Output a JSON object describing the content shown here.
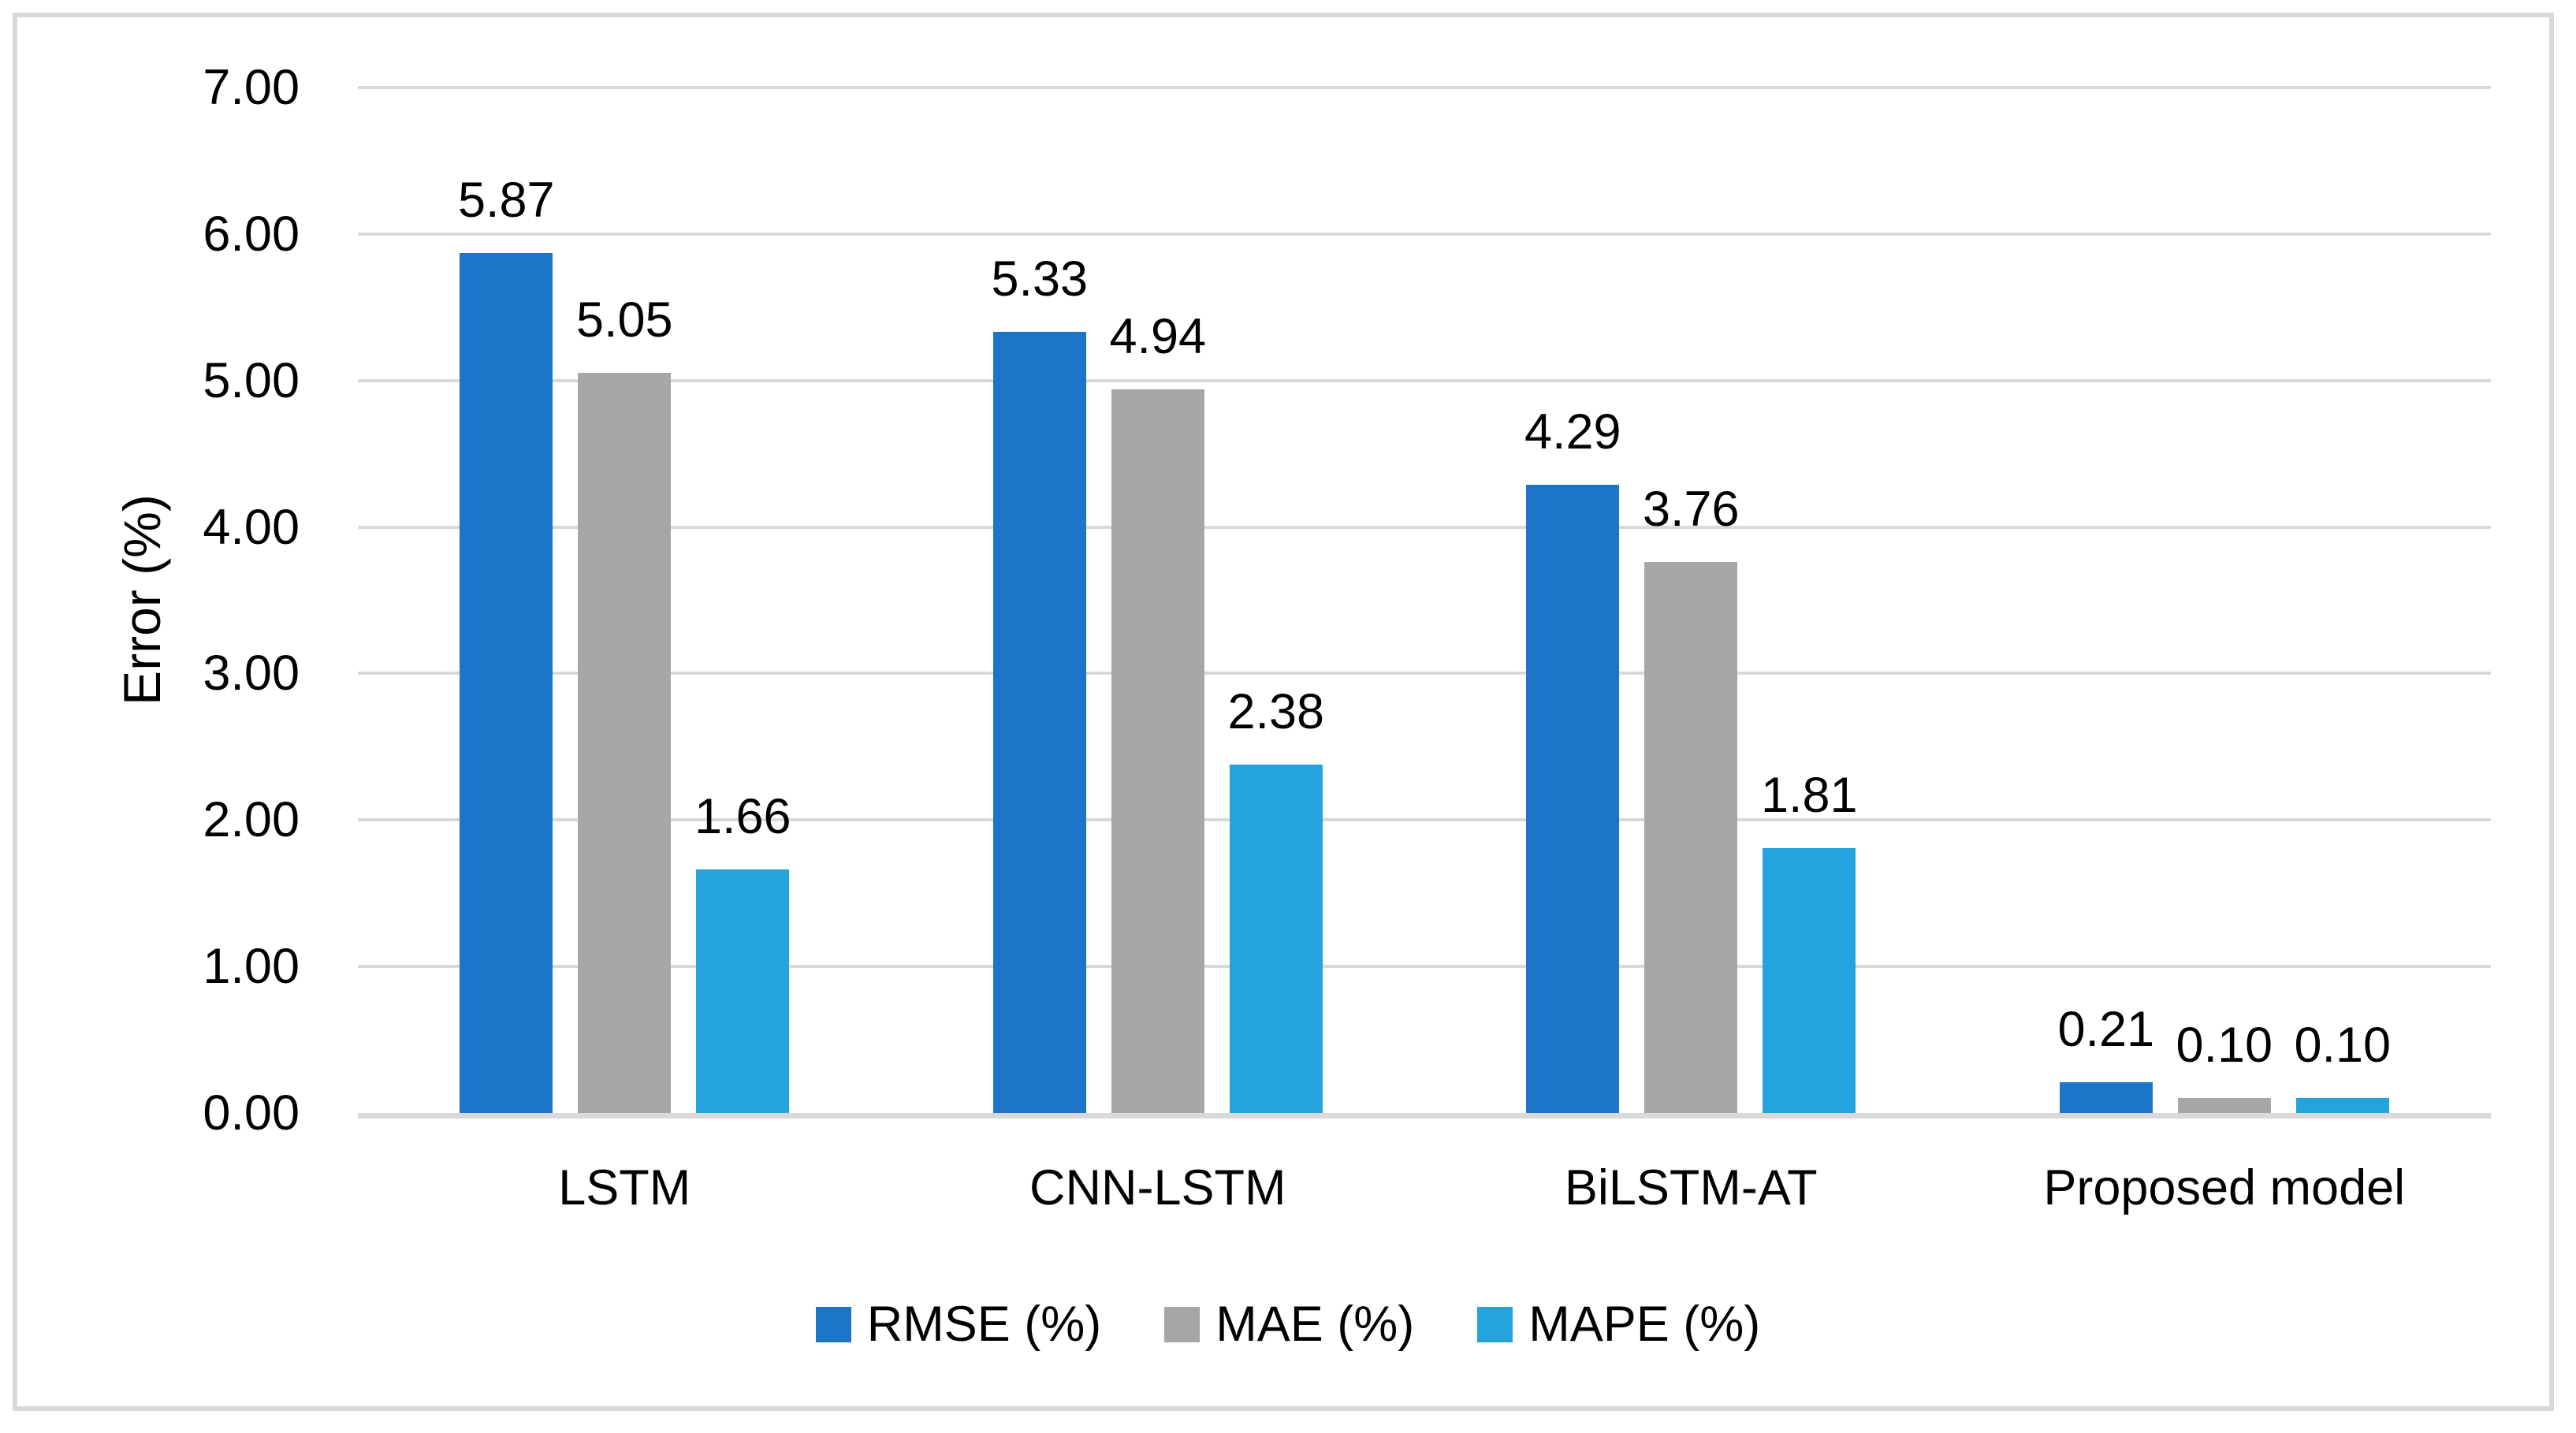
{
  "chart_data": {
    "type": "bar",
    "title": "",
    "xlabel": "",
    "ylabel": "Error (%)",
    "categories": [
      "LSTM",
      "CNN-LSTM",
      "BiLSTM-AT",
      "Proposed model"
    ],
    "series": [
      {
        "name": "RMSE (%)",
        "color": "#1D75C7",
        "values": [
          5.87,
          5.33,
          4.29,
          0.21
        ],
        "labels": [
          "5.87",
          "5.33",
          "4.29",
          "0.21"
        ]
      },
      {
        "name": "MAE (%)",
        "color": "#A6A6A6",
        "values": [
          5.05,
          4.94,
          3.76,
          0.1
        ],
        "labels": [
          "5.05",
          "4.94",
          "3.76",
          "0.10"
        ]
      },
      {
        "name": "MAPE (%)",
        "color": "#24A3DC",
        "values": [
          1.66,
          2.38,
          1.81,
          0.1
        ],
        "labels": [
          "1.66",
          "2.38",
          "1.81",
          "0.10"
        ]
      }
    ],
    "y_axis": {
      "min": 0,
      "max": 7,
      "step": 1,
      "tick_labels": [
        "0.00",
        "1.00",
        "2.00",
        "3.00",
        "4.00",
        "5.00",
        "6.00",
        "7.00"
      ]
    },
    "grid": true,
    "data_labels": true,
    "legend_position": "bottom"
  },
  "colors": {
    "background": "#FFFFFF",
    "text": "#000000",
    "gridline": "#D9D9D9",
    "axis_line": "#D9D9D9",
    "frame_border": "#D9D9D9"
  }
}
